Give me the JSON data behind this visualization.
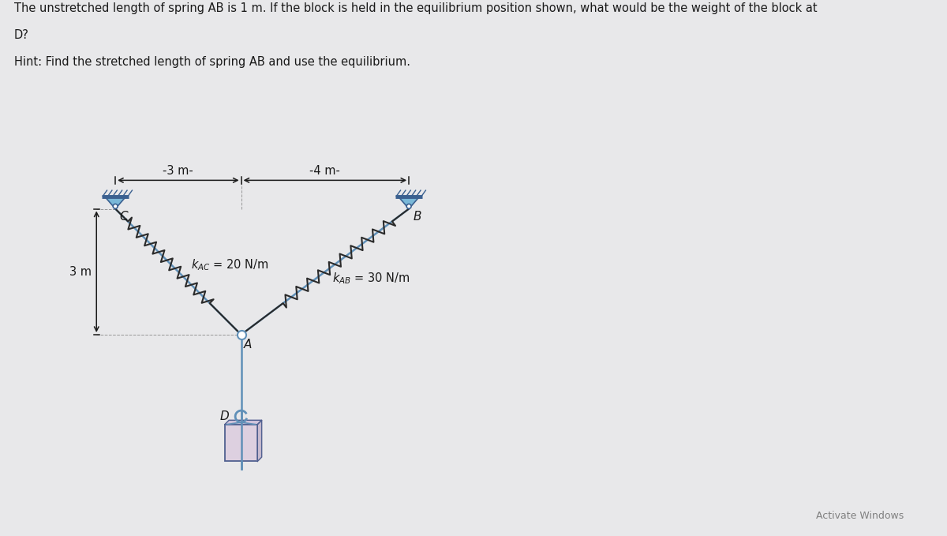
{
  "title_line1": "The unstretched length of spring AB is 1 m. If the block is held in the equilibrium position shown, what would be the weight of the block at",
  "title_line2": "D?",
  "hint_text": "Hint: Find the stretched length of spring AB and use the equilibrium.",
  "bg_color": "#e8e8ea",
  "support_color_fill": "#7ab8d8",
  "support_color_dark": "#3a6090",
  "spring_color": "#2a2a2a",
  "rod_color": "#6090b8",
  "text_color": "#1a1a1a",
  "dim_color": "#1a1a1a",
  "box_color": "#ddd0e0",
  "box_shade1": "#c8bcd0",
  "box_shade2": "#d0c4dc",
  "box_edge": "#506090",
  "C": [
    0.0,
    0.0
  ],
  "A": [
    3.0,
    -3.0
  ],
  "B": [
    7.0,
    0.0
  ],
  "label_3m_horiz": "-3 m-",
  "label_4m_horiz": "-4 m-",
  "label_kAC": "$k_{AC}$ = 20 N/m",
  "label_kAB": "$k_{AB}$ = 30 N/m",
  "label_A": "A",
  "label_B": "B",
  "label_C": "C",
  "label_D": "D",
  "label_3m_vert": "3 m",
  "watermark": "Activate Windows"
}
